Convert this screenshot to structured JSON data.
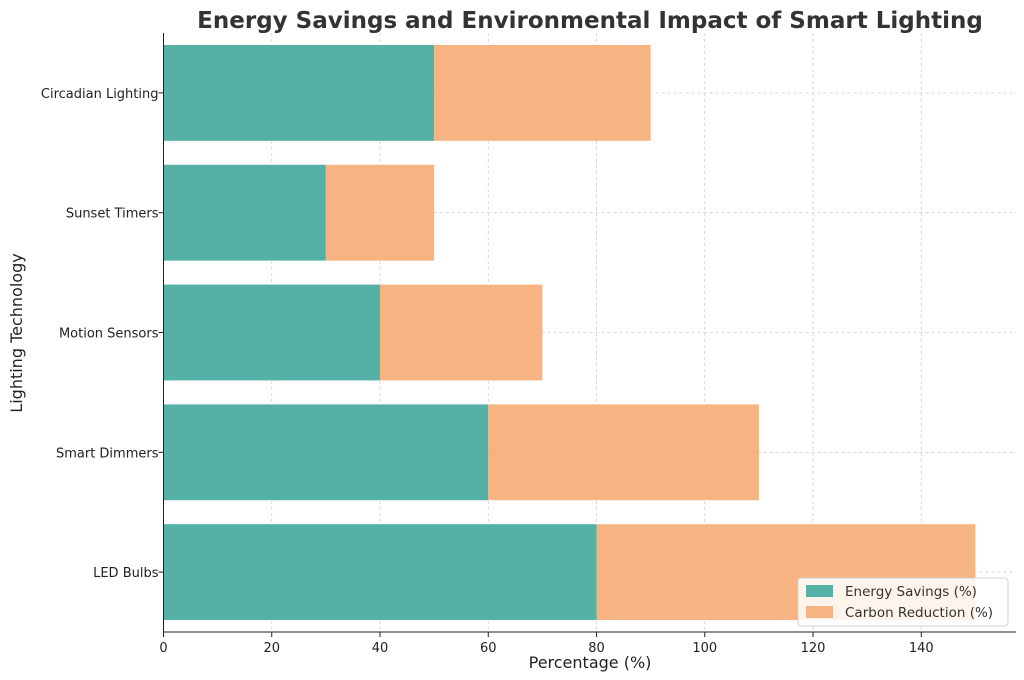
{
  "chart_data": {
    "type": "bar",
    "orientation": "horizontal",
    "stacked": true,
    "title": "Energy Savings and Environmental Impact of Smart Lighting",
    "xlabel": "Percentage (%)",
    "ylabel": "Lighting Technology",
    "categories": [
      "LED Bulbs",
      "Smart Dimmers",
      "Motion Sensors",
      "Sunset Timers",
      "Circadian Lighting"
    ],
    "series": [
      {
        "name": "Energy Savings (%)",
        "color": "#55b0a6",
        "values": [
          80,
          60,
          40,
          30,
          50
        ]
      },
      {
        "name": "Carbon Reduction (%)",
        "color": "#f5b482",
        "values": [
          70,
          50,
          30,
          20,
          40
        ]
      }
    ],
    "xlim": [
      0,
      157.5
    ],
    "xticks": [
      0,
      20,
      40,
      60,
      80,
      100,
      120,
      140
    ],
    "grid": true,
    "legend_position": "bottom-right"
  }
}
